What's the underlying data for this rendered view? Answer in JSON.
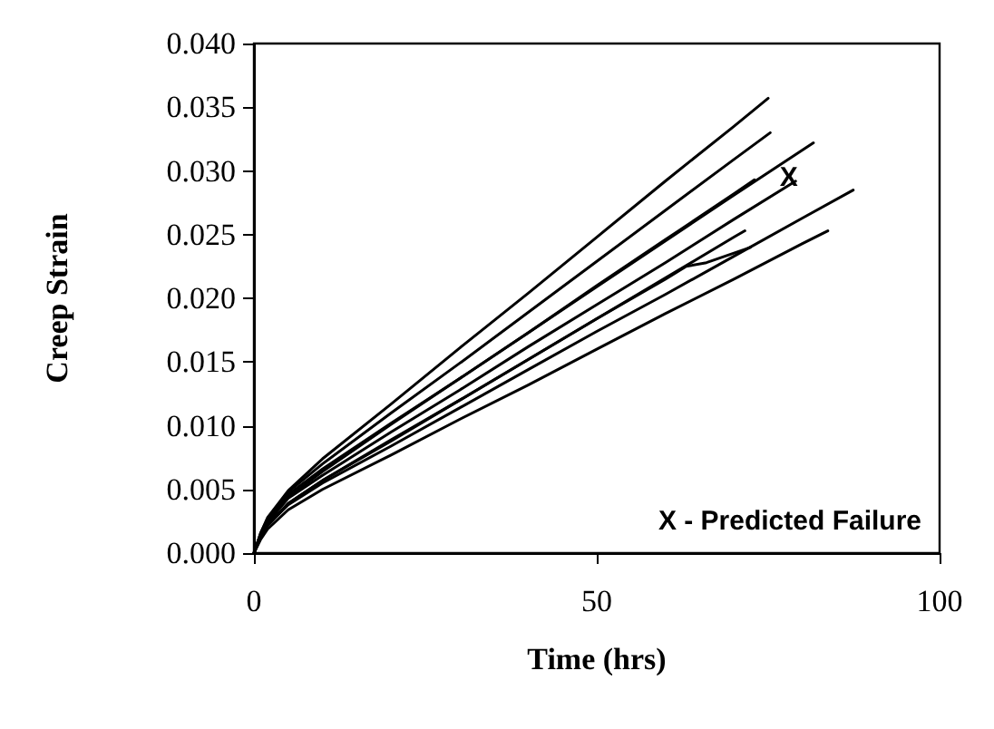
{
  "chart_data": {
    "type": "line",
    "xlabel": "Time (hrs)",
    "ylabel": "Creep Strain",
    "grid": false,
    "xlim": [
      0,
      100
    ],
    "xticks": [
      0,
      50,
      100
    ],
    "ylim": [
      0,
      0.04
    ],
    "yticks": [
      {
        "value": 0,
        "label": "0.000"
      },
      {
        "value": 0.005,
        "label": "0.005"
      },
      {
        "value": 0.01,
        "label": "0.010"
      },
      {
        "value": 0.015,
        "label": "0.015"
      },
      {
        "value": 0.02,
        "label": "0.020"
      },
      {
        "value": 0.025,
        "label": "0.025"
      },
      {
        "value": 0.03,
        "label": "0.030"
      },
      {
        "value": 0.035,
        "label": "0.035"
      },
      {
        "value": 0.04,
        "label": "0.040"
      }
    ],
    "annotations": [
      "X - Predicted Failure",
      {
        "text": "X",
        "x": 78,
        "y": 0.0295
      }
    ],
    "series": [
      {
        "color": "#000000",
        "x": [
          0,
          1,
          2,
          5,
          10,
          20,
          30,
          40,
          50,
          60,
          70,
          75
        ],
        "values": [
          0,
          0.0016,
          0.0028,
          0.0049,
          0.0074,
          0.0117,
          0.0161,
          0.0204,
          0.0248,
          0.0292,
          0.0335,
          0.0357
        ]
      },
      {
        "color": "#000000",
        "x": [
          0,
          1,
          2,
          5,
          10,
          20,
          30,
          40,
          50,
          60,
          70,
          75.3
        ],
        "values": [
          0,
          0.0016,
          0.0027,
          0.0048,
          0.007,
          0.011,
          0.0149,
          0.0189,
          0.0229,
          0.0269,
          0.0309,
          0.033
        ]
      },
      {
        "color": "#000000",
        "x": [
          0,
          1,
          2,
          5,
          10,
          20,
          30,
          40,
          50,
          60,
          70,
          81.6
        ],
        "values": [
          0,
          0.0015,
          0.0026,
          0.0046,
          0.0066,
          0.0102,
          0.0137,
          0.0173,
          0.0209,
          0.0245,
          0.0281,
          0.0322
        ]
      },
      {
        "color": "#000000",
        "x": [
          0,
          1,
          2,
          5,
          10,
          20,
          30,
          40,
          50,
          60,
          70,
          79
        ],
        "values": [
          0,
          0.0014,
          0.0024,
          0.0043,
          0.0061,
          0.0095,
          0.0128,
          0.0162,
          0.0195,
          0.0228,
          0.0262,
          0.0292
        ]
      },
      {
        "color": "#000000",
        "x": [
          0,
          1,
          2,
          5,
          10,
          20,
          30,
          40,
          50,
          60,
          70,
          73
        ],
        "values": [
          0,
          0.0015,
          0.0025,
          0.0044,
          0.0064,
          0.0101,
          0.0137,
          0.0173,
          0.021,
          0.0246,
          0.0282,
          0.0293
        ]
      },
      {
        "color": "#000000",
        "x": [
          0,
          1,
          2,
          5,
          10,
          20,
          30,
          40,
          50,
          60,
          70,
          80,
          87.4
        ],
        "values": [
          0,
          0.0013,
          0.0022,
          0.0038,
          0.0055,
          0.0084,
          0.0114,
          0.0144,
          0.0174,
          0.0203,
          0.0233,
          0.0263,
          0.0285
        ]
      },
      {
        "color": "#000000",
        "x": [
          0,
          1,
          2,
          5,
          10,
          20,
          30,
          40,
          50,
          60,
          70,
          80,
          83.7
        ],
        "values": [
          0,
          0.0011,
          0.0019,
          0.0034,
          0.005,
          0.0077,
          0.0105,
          0.0132,
          0.016,
          0.0188,
          0.0215,
          0.0243,
          0.0253
        ]
      },
      {
        "color": "#000000",
        "x": [
          0,
          1,
          2,
          5,
          10,
          20,
          30,
          40,
          50,
          60,
          70,
          71.6
        ],
        "values": [
          0,
          0.0013,
          0.0022,
          0.0039,
          0.0057,
          0.0089,
          0.012,
          0.0152,
          0.0184,
          0.0216,
          0.0248,
          0.0253
        ]
      },
      {
        "color": "#000000",
        "x": [
          0,
          1,
          2,
          5,
          10,
          20,
          30,
          40,
          50,
          60,
          63,
          66,
          72.4
        ],
        "values": [
          0,
          0.0013,
          0.0022,
          0.0039,
          0.0057,
          0.0088,
          0.012,
          0.0152,
          0.0184,
          0.0215,
          0.0225,
          0.0228,
          0.024
        ]
      }
    ]
  }
}
